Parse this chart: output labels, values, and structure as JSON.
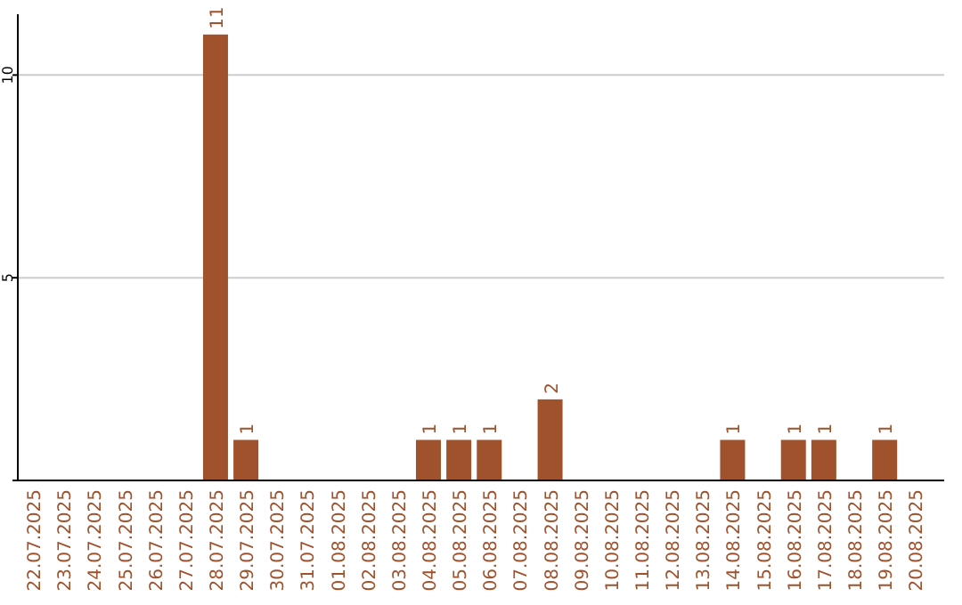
{
  "chart_data": {
    "type": "bar",
    "categories": [
      "22.07.2025",
      "23.07.2025",
      "24.07.2025",
      "25.07.2025",
      "26.07.2025",
      "27.07.2025",
      "28.07.2025",
      "29.07.2025",
      "30.07.2025",
      "31.07.2025",
      "01.08.2025",
      "02.08.2025",
      "03.08.2025",
      "04.08.2025",
      "05.08.2025",
      "06.08.2025",
      "07.08.2025",
      "08.08.2025",
      "09.08.2025",
      "10.08.2025",
      "11.08.2025",
      "12.08.2025",
      "13.08.2025",
      "14.08.2025",
      "15.08.2025",
      "16.08.2025",
      "17.08.2025",
      "18.08.2025",
      "19.08.2025",
      "20.08.2025"
    ],
    "values": [
      0,
      0,
      0,
      0,
      0,
      0,
      11,
      1,
      0,
      0,
      0,
      0,
      0,
      1,
      1,
      1,
      0,
      2,
      0,
      0,
      0,
      0,
      0,
      1,
      0,
      1,
      1,
      0,
      1,
      0
    ],
    "value_labels": [
      null,
      null,
      null,
      null,
      null,
      null,
      "11",
      "1",
      null,
      null,
      null,
      null,
      null,
      "1",
      "1",
      "1",
      null,
      "2",
      null,
      null,
      null,
      null,
      null,
      "1",
      null,
      "1",
      "1",
      null,
      "1",
      null
    ],
    "color": "#a0522d",
    "ylim": [
      0,
      11.5
    ],
    "yticks": [
      {
        "value": 0,
        "label": null
      },
      5,
      10
    ],
    "grid": "y"
  }
}
